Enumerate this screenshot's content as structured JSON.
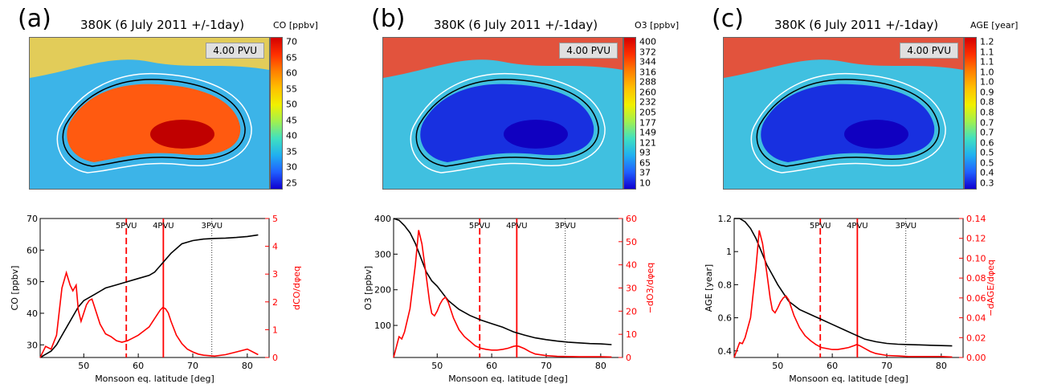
{
  "panels": [
    {
      "letter": "(a)",
      "map_title": "380K (6 July 2011 +/-1day)",
      "pv_label": "4.00 PVU",
      "colorbar_title": "CO [ppbv]",
      "colorbar_ticks": [
        "70",
        "65",
        "60",
        "55",
        "50",
        "45",
        "40",
        "35",
        "30",
        "25"
      ],
      "chart_data": {
        "type": "line",
        "xlabel": "Monsoon eq. latitude [deg]",
        "ylabel_left": "CO [ppbv]",
        "ylabel_right": "dCO/dφeq",
        "xlim": [
          42,
          84
        ],
        "ylim_left": [
          26,
          70
        ],
        "ylim_right": [
          0,
          5
        ],
        "xticks": [
          50,
          60,
          70,
          80
        ],
        "yticks_left": [
          30,
          40,
          50,
          60,
          70
        ],
        "yticks_right": [
          0,
          1,
          2,
          3,
          4,
          5
        ],
        "vlines": [
          {
            "x": 57.8,
            "label": "5PVU",
            "style": "dashed",
            "color": "#ff0000"
          },
          {
            "x": 64.6,
            "label": "4PVU",
            "style": "solid",
            "color": "#ff0000"
          },
          {
            "x": 73.5,
            "label": "3PVU",
            "style": "dotted",
            "color": "#000000"
          }
        ],
        "series": [
          {
            "axis": "left",
            "color": "#000000",
            "x": [
              42,
              43,
              44,
              45,
              46,
              47,
              48,
              49,
              50,
              52,
              54,
              56,
              58,
              60,
              62,
              63,
              64,
              65,
              66,
              68,
              70,
              72,
              74,
              76,
              78,
              80,
              82
            ],
            "y": [
              26,
              27,
              28,
              30,
              33,
              36,
              39,
              42,
              44,
              46,
              48,
              49,
              50,
              51,
              52,
              53,
              55,
              57,
              59,
              62,
              63,
              63.5,
              63.7,
              63.8,
              64,
              64.3,
              64.8
            ]
          },
          {
            "axis": "right",
            "color": "#ff0000",
            "x": [
              42,
              43,
              44,
              45,
              46,
              46.8,
              47.5,
              48,
              48.6,
              49,
              49.5,
              50,
              50.5,
              51,
              51.5,
              52,
              53,
              54,
              55,
              56,
              57,
              58,
              59,
              60,
              61,
              62,
              63,
              64,
              64.5,
              65,
              65.5,
              66,
              67,
              68,
              69,
              70,
              71,
              72,
              74,
              76,
              78,
              80,
              82
            ],
            "y": [
              0,
              0.4,
              0.3,
              0.8,
              2.5,
              3.05,
              2.6,
              2.4,
              2.6,
              1.7,
              1.3,
              1.6,
              1.9,
              2.05,
              2.1,
              1.8,
              1.2,
              0.85,
              0.75,
              0.6,
              0.55,
              0.6,
              0.7,
              0.8,
              0.95,
              1.1,
              1.4,
              1.7,
              1.8,
              1.75,
              1.6,
              1.3,
              0.8,
              0.5,
              0.3,
              0.2,
              0.12,
              0.08,
              0.05,
              0.1,
              0.2,
              0.3,
              0.1
            ]
          }
        ]
      }
    },
    {
      "letter": "(b)",
      "map_title": "380K (6 July 2011 +/-1day)",
      "pv_label": "4.00 PVU",
      "colorbar_title": "O3 [ppbv]",
      "colorbar_ticks": [
        "400",
        "372",
        "344",
        "316",
        "288",
        "260",
        "232",
        "205",
        "177",
        "149",
        "121",
        "93",
        "65",
        "37",
        "10"
      ],
      "chart_data": {
        "type": "line",
        "xlabel": "Monsoon eq. latitude [deg]",
        "ylabel_left": "O3 [ppbv]",
        "ylabel_right": "−dO3/dφeq",
        "xlim": [
          42,
          84
        ],
        "ylim_left": [
          10,
          400
        ],
        "ylim_right": [
          0,
          60
        ],
        "xticks": [
          50,
          60,
          70,
          80
        ],
        "yticks_left": [
          100,
          200,
          300,
          400
        ],
        "yticks_right": [
          0,
          10,
          20,
          30,
          40,
          50,
          60
        ],
        "vlines": [
          {
            "x": 57.8,
            "label": "5PVU",
            "style": "dashed",
            "color": "#ff0000"
          },
          {
            "x": 64.6,
            "label": "4PVU",
            "style": "solid",
            "color": "#ff0000"
          },
          {
            "x": 73.5,
            "label": "3PVU",
            "style": "dotted",
            "color": "#000000"
          }
        ],
        "series": [
          {
            "axis": "left",
            "color": "#000000",
            "x": [
              42,
              43,
              44,
              45,
              46,
              47,
              48,
              49,
              50,
              52,
              54,
              56,
              58,
              60,
              62,
              64,
              66,
              68,
              70,
              72,
              74,
              76,
              78,
              80,
              82
            ],
            "y": [
              400,
              395,
              380,
              360,
              330,
              290,
              250,
              225,
              210,
              170,
              145,
              128,
              115,
              105,
              95,
              82,
              73,
              65,
              60,
              56,
              53,
              51,
              49,
              48,
              46
            ]
          },
          {
            "axis": "right",
            "color": "#ff0000",
            "x": [
              42,
              43,
              43.5,
              44,
              45,
              46,
              46.6,
              47.2,
              48,
              48.6,
              49,
              49.5,
              50,
              50.5,
              51,
              51.5,
              52,
              53,
              54,
              55,
              56,
              57,
              58,
              59,
              60,
              61,
              62,
              63,
              64,
              64.5,
              65,
              66,
              67,
              68,
              70,
              72,
              74,
              76,
              78,
              80,
              82
            ],
            "y": [
              0,
              9,
              8,
              11,
              21,
              40,
              55,
              49,
              35,
              24,
              19,
              18,
              20,
              23,
              25,
              26,
              24,
              17,
              12,
              9,
              7,
              5,
              4,
              3.5,
              3.2,
              3.2,
              3.5,
              4,
              4.8,
              5,
              4.8,
              3.8,
              2.5,
              1.5,
              0.8,
              0.5,
              0.4,
              0.3,
              0.3,
              0.3,
              0.2
            ]
          }
        ]
      }
    },
    {
      "letter": "(c)",
      "map_title": "380K (6 July 2011 +/-1day)",
      "pv_label": "4.00 PVU",
      "colorbar_title": "AGE [year]",
      "colorbar_ticks": [
        "1.2",
        "1.1",
        "1.1",
        "1.0",
        "1.0",
        "0.9",
        "0.8",
        "0.8",
        "0.7",
        "0.7",
        "0.6",
        "0.5",
        "0.5",
        "0.4",
        "0.3"
      ],
      "chart_data": {
        "type": "line",
        "xlabel": "Monsoon eq. latitude [deg]",
        "ylabel_left": "AGE [year]",
        "ylabel_right": "−dAGE/dφeq",
        "xlim": [
          42,
          84
        ],
        "ylim_left": [
          0.36,
          1.2
        ],
        "ylim_right": [
          0,
          0.14
        ],
        "xticks": [
          50,
          60,
          70,
          80
        ],
        "yticks_left": [
          0.4,
          0.6,
          0.8,
          1.0,
          1.2
        ],
        "yticks_right": [
          0.0,
          0.02,
          0.04,
          0.06,
          0.08,
          0.1,
          0.12,
          0.14
        ],
        "vlines": [
          {
            "x": 57.8,
            "label": "5PVU",
            "style": "dashed",
            "color": "#ff0000"
          },
          {
            "x": 64.6,
            "label": "4PVU",
            "style": "solid",
            "color": "#ff0000"
          },
          {
            "x": 73.5,
            "label": "3PVU",
            "style": "dotted",
            "color": "#000000"
          }
        ],
        "series": [
          {
            "axis": "left",
            "color": "#000000",
            "x": [
              42,
              43,
              44,
              45,
              46,
              47,
              48,
              49,
              50,
              52,
              54,
              56,
              58,
              60,
              62,
              64,
              66,
              68,
              70,
              72,
              74,
              76,
              78,
              80,
              82
            ],
            "y": [
              1.2,
              1.2,
              1.18,
              1.14,
              1.08,
              1.0,
              0.92,
              0.86,
              0.8,
              0.7,
              0.65,
              0.62,
              0.59,
              0.56,
              0.53,
              0.5,
              0.47,
              0.455,
              0.445,
              0.44,
              0.438,
              0.436,
              0.434,
              0.432,
              0.43
            ]
          },
          {
            "axis": "right",
            "color": "#ff0000",
            "x": [
              42,
              43,
              43.5,
              44,
              45,
              46,
              46.6,
              47.2,
              48,
              48.6,
              49,
              49.5,
              50,
              50.5,
              51,
              51.5,
              52,
              53,
              54,
              55,
              56,
              57,
              58,
              59,
              60,
              61,
              62,
              63,
              64,
              64.5,
              65,
              66,
              67,
              68,
              70,
              72,
              74,
              76,
              78,
              80,
              82
            ],
            "y": [
              0,
              0.015,
              0.014,
              0.02,
              0.04,
              0.09,
              0.128,
              0.115,
              0.085,
              0.06,
              0.048,
              0.045,
              0.05,
              0.056,
              0.06,
              0.062,
              0.058,
              0.042,
              0.03,
              0.022,
              0.017,
              0.013,
              0.01,
              0.009,
              0.008,
              0.008,
              0.009,
              0.01,
              0.012,
              0.013,
              0.012,
              0.009,
              0.006,
              0.004,
              0.002,
              0.0015,
              0.001,
              0.001,
              0.001,
              0.001,
              0.0005
            ]
          }
        ]
      }
    }
  ]
}
